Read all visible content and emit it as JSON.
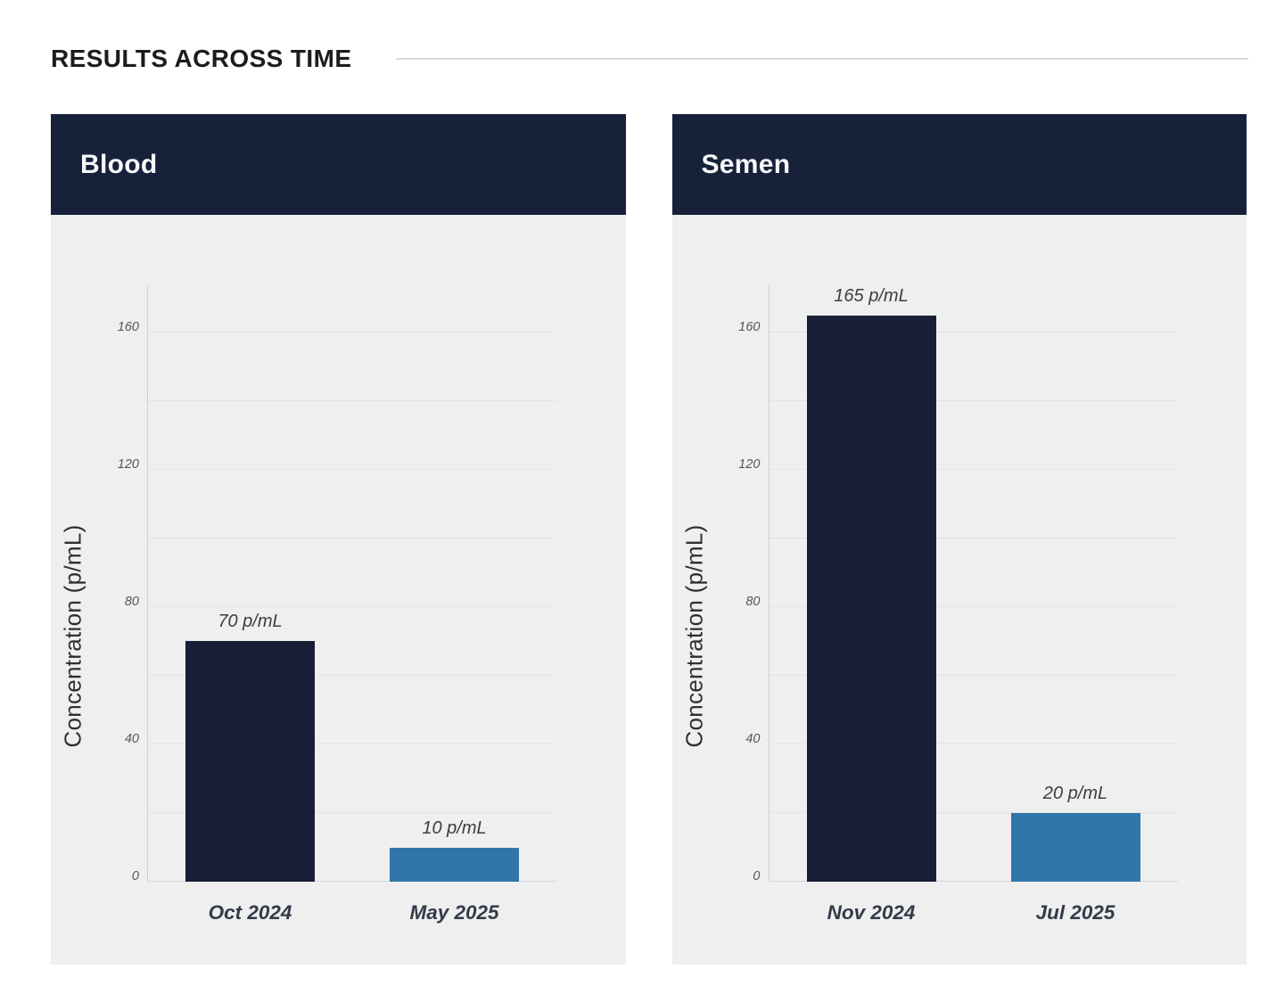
{
  "header": {
    "title": "RESULTS ACROSS TIME"
  },
  "colors": {
    "header_navy": "#18213a",
    "bar_navy": "#181f37",
    "bar_blue": "#3076a8",
    "panel_bg": "#efeff0",
    "gridline": "#e3e3e4",
    "divider": "#d9d9d9"
  },
  "chart_data": [
    {
      "type": "bar",
      "panel_title": "Blood",
      "categories": [
        "Oct 2024",
        "May 2025"
      ],
      "values": [
        70,
        10
      ],
      "value_labels": [
        "70 p/mL",
        "10 p/mL"
      ],
      "bar_colors": [
        "#181f37",
        "#3076a8"
      ],
      "title": "Blood",
      "xlabel": "",
      "ylabel": "Concentration (p/mL)",
      "ylim": [
        0,
        174
      ],
      "yticks": [
        0,
        40,
        80,
        120,
        160
      ],
      "grid_step": 20,
      "grid_max": 160,
      "grid": "horizontal",
      "legend_position": "none"
    },
    {
      "type": "bar",
      "panel_title": "Semen",
      "categories": [
        "Nov 2024",
        "Jul 2025"
      ],
      "values": [
        165,
        20
      ],
      "value_labels": [
        "165 p/mL",
        "20 p/mL"
      ],
      "bar_colors": [
        "#181f37",
        "#3076a8"
      ],
      "title": "Semen",
      "xlabel": "",
      "ylabel": "Concentration (p/mL)",
      "ylim": [
        0,
        174
      ],
      "yticks": [
        0,
        40,
        80,
        120,
        160
      ],
      "grid_step": 20,
      "grid_max": 160,
      "grid": "horizontal",
      "legend_position": "none"
    }
  ]
}
